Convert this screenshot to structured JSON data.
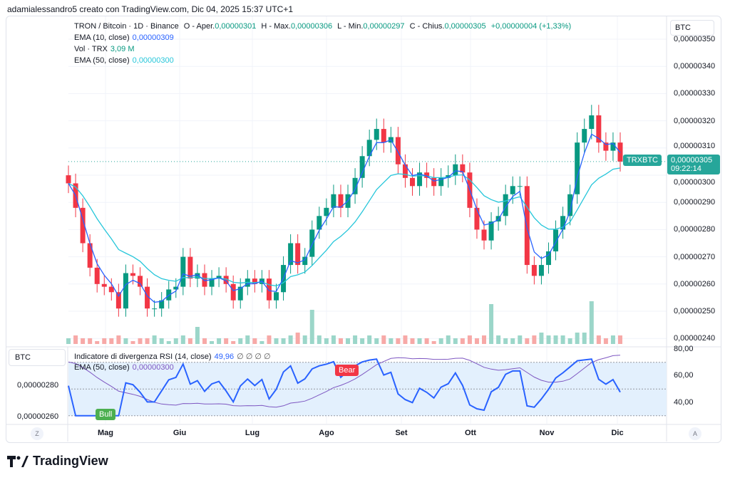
{
  "caption": "adamialessandro5 creato con TradingView.com, Dic 04, 2025 15:37 UTC+1",
  "legend": {
    "symbol": "TRON / Bitcoin · 1D · Binance",
    "o_label": "O - Aper.",
    "o": "0,00000301",
    "h_label": "H - Max.",
    "h": "0,00000306",
    "l_label": "L - Min.",
    "l": "0,00000297",
    "c_label": "C - Chius.",
    "c": "0,00000305",
    "change": "+0,00000004 (+1,33%)",
    "ema10_label": "EMA (10, close)",
    "ema10": "0,00000309",
    "vol_label": "Vol · TRX",
    "vol": "3,09 M",
    "ema50_label": "EMA (50, close)",
    "ema50": "0,00000300"
  },
  "currency": "BTC",
  "price_ticks": [
    "0,00000350",
    "0,00000340",
    "0,00000330",
    "0,00000320",
    "0,00000310",
    "0,00000300",
    "0,00000290",
    "0,00000280",
    "0,00000270",
    "0,00000260",
    "0,00000250",
    "0,00000240"
  ],
  "last": {
    "ticker": "TRXBTC",
    "price": "0,00000305",
    "countdown": "09:22:14"
  },
  "rsi": {
    "label": "Indicatore di divergenza RSI (14, close)",
    "value": "49,96",
    "icons": "∅ ∅ ∅ ∅",
    "ema_label": "EMA (50, close)",
    "ema_value": "0,00000300",
    "ticks": [
      "80,00",
      "60,00",
      "40,00"
    ],
    "left_ticks": [
      "0,00000280",
      "0,00000260"
    ],
    "bull": "Bull",
    "bear": "Bear"
  },
  "months": [
    "Mag",
    "Giu",
    "Lug",
    "Ago",
    "Set",
    "Ott",
    "Nov",
    "Dic"
  ],
  "axis_buttons": {
    "left": "Z",
    "right": "A"
  },
  "brand": "TradingView",
  "colors": {
    "up": "#089981",
    "down": "#f23645",
    "ema10": "#2962ff",
    "ema50": "#26c6da",
    "rsi": "#2962ff",
    "rsi_ema": "#7e57c2"
  },
  "chart_data": {
    "type": "candlestick",
    "ylim": [
      2.35e-06,
      3.5e-06
    ],
    "grid": true,
    "x_tick_labels": [
      "Mag",
      "Giu",
      "Lug",
      "Ago",
      "Set",
      "Ott",
      "Nov",
      "Dic"
    ],
    "close": [
      2.97e-06,
      2.88e-06,
      2.75e-06,
      2.66e-06,
      2.6e-06,
      2.59e-06,
      2.57e-06,
      2.51e-06,
      2.64e-06,
      2.63e-06,
      2.59e-06,
      2.51e-06,
      2.51e-06,
      2.54e-06,
      2.58e-06,
      2.59e-06,
      2.7e-06,
      2.62e-06,
      2.64e-06,
      2.59e-06,
      2.62e-06,
      2.63e-06,
      2.6e-06,
      2.54e-06,
      2.59e-06,
      2.62e-06,
      2.6e-06,
      2.62e-06,
      2.54e-06,
      2.57e-06,
      2.67e-06,
      2.75e-06,
      2.67e-06,
      2.7e-06,
      2.8e-06,
      2.85e-06,
      2.88e-06,
      2.93e-06,
      2.88e-06,
      2.93e-06,
      2.99e-06,
      3.07e-06,
      3.13e-06,
      3.17e-06,
      3.12e-06,
      3.14e-06,
      3.04e-06,
      2.99e-06,
      2.96e-06,
      3.01e-06,
      2.99e-06,
      2.96e-06,
      2.99e-06,
      3e-06,
      3.04e-06,
      3.01e-06,
      2.88e-06,
      2.8e-06,
      2.76e-06,
      2.83e-06,
      2.85e-06,
      2.93e-06,
      2.96e-06,
      2.96e-06,
      2.67e-06,
      2.63e-06,
      2.67e-06,
      2.72e-06,
      2.8e-06,
      2.85e-06,
      2.93e-06,
      3.12e-06,
      3.17e-06,
      3.22e-06,
      3.12e-06,
      3.09e-06,
      3.12e-06,
      3.05e-06
    ],
    "volume": [
      2,
      3,
      2,
      2,
      1,
      2,
      2,
      3,
      2,
      1,
      2,
      2,
      3,
      2,
      1,
      2,
      3,
      2,
      6,
      2,
      1,
      2,
      2,
      1,
      2,
      3,
      2,
      1,
      3,
      2,
      2,
      3,
      4,
      3,
      12,
      3,
      2,
      3,
      2,
      2,
      3,
      2,
      3,
      2,
      3,
      2,
      2,
      3,
      2,
      2,
      2,
      1,
      2,
      3,
      2,
      2,
      3,
      2,
      3,
      14,
      3,
      2,
      2,
      3,
      2,
      3,
      4,
      3,
      3,
      3,
      2,
      4,
      4,
      15,
      3,
      2,
      3,
      3
    ]
  }
}
